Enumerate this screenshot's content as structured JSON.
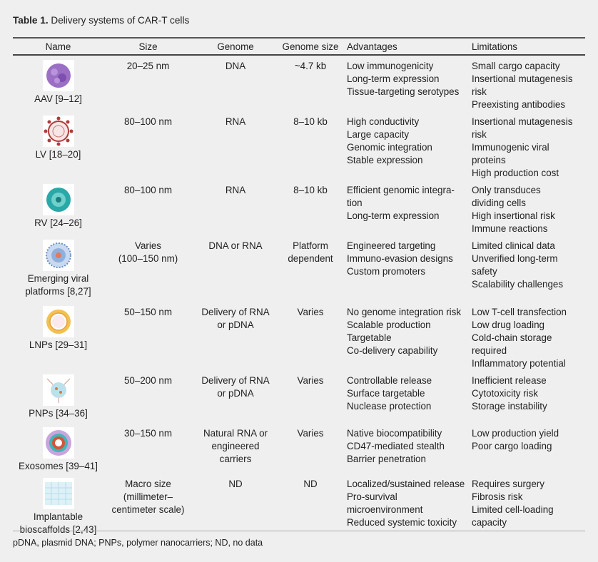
{
  "title": {
    "label": "Table 1.",
    "text": " Delivery systems of CAR-T cells"
  },
  "headers": [
    "Name",
    "Size",
    "Genome",
    "Genome size",
    "Advantages",
    "Limitations"
  ],
  "rows": [
    {
      "icon": "aav-icon",
      "name": [
        "AAV [9–12]"
      ],
      "size": [
        "20–25 nm"
      ],
      "genome": [
        "DNA"
      ],
      "genome_size": [
        "~4.7 kb"
      ],
      "advantages": [
        "Low immunogenicity",
        "Long-term expression",
        "Tissue-targeting serotypes"
      ],
      "limitations": [
        "Small cargo capacity",
        "Insertional mutagenesis",
        "risk",
        "Preexisting antibodies"
      ]
    },
    {
      "icon": "lentivirus-icon",
      "name": [
        "LV [18–20]"
      ],
      "size": [
        "80–100 nm"
      ],
      "genome": [
        "RNA"
      ],
      "genome_size": [
        "8–10 kb"
      ],
      "advantages": [
        "High conductivity",
        "Large capacity",
        "Genomic integration",
        "Stable expression"
      ],
      "limitations": [
        "Insertional mutagenesis",
        "risk",
        "Immunogenic viral",
        "proteins",
        "High production cost"
      ]
    },
    {
      "icon": "retrovirus-icon",
      "name": [
        "RV [24–26]"
      ],
      "size": [
        "80–100 nm"
      ],
      "genome": [
        "RNA"
      ],
      "genome_size": [
        "8–10 kb"
      ],
      "advantages": [
        "Efficient genomic integra-",
        "tion",
        "Long-term expression"
      ],
      "limitations": [
        "Only transduces",
        "dividing cells",
        "High insertional risk",
        "Immune reactions"
      ]
    },
    {
      "icon": "emerging-viral-icon",
      "name": [
        "Emerging viral",
        "platforms [8,27]"
      ],
      "size": [
        "Varies",
        "(100–150 nm)"
      ],
      "genome": [
        "DNA or RNA"
      ],
      "genome_size": [
        "Platform",
        "dependent"
      ],
      "advantages": [
        "Engineered targeting",
        "Immuno-evasion designs",
        "Custom promoters"
      ],
      "limitations": [
        "Limited clinical data",
        "Unverified long-term",
        "safety",
        "Scalability challenges"
      ]
    },
    {
      "icon": "lnp-icon",
      "name": [
        "LNPs [29–31]"
      ],
      "size": [
        "50–150 nm"
      ],
      "genome": [
        "Delivery of RNA",
        "or pDNA"
      ],
      "genome_size": [
        "Varies"
      ],
      "advantages": [
        "No genome integration risk",
        "Scalable production",
        "Targetable",
        "Co-delivery capability"
      ],
      "limitations": [
        "Low T-cell transfection",
        "Low drug loading",
        "Cold-chain storage",
        "required",
        "Inflammatory potential"
      ]
    },
    {
      "icon": "pnp-icon",
      "name": [
        "PNPs [34–36]"
      ],
      "size": [
        "50–200 nm"
      ],
      "genome": [
        "Delivery of RNA",
        "or pDNA"
      ],
      "genome_size": [
        "Varies"
      ],
      "advantages": [
        "Controllable release",
        "Surface targetable",
        "Nuclease protection"
      ],
      "limitations": [
        "Inefficient release",
        "Cytotoxicity risk",
        "Storage instability"
      ]
    },
    {
      "icon": "exosome-icon",
      "name": [
        "Exosomes [39–41]"
      ],
      "size": [
        "30–150 nm"
      ],
      "genome": [
        "Natural RNA or",
        "engineered",
        "carriers"
      ],
      "genome_size": [
        "Varies"
      ],
      "advantages": [
        "Native biocompatibility",
        "CD47-mediated stealth",
        "Barrier penetration"
      ],
      "limitations": [
        "Low production yield",
        "Poor cargo loading"
      ]
    },
    {
      "icon": "bioscaffold-icon",
      "name": [
        "Implantable",
        "bioscaffolds [2,43]"
      ],
      "size": [
        "Macro size",
        "(millimeter–",
        "centimeter scale)"
      ],
      "genome": [
        "ND"
      ],
      "genome_size": [
        "ND"
      ],
      "advantages": [
        "Localized/sustained release",
        "Pro-survival",
        "microenvironment",
        "Reduced systemic toxicity"
      ],
      "limitations": [
        "Requires surgery",
        "Fibrosis risk",
        "Limited cell-loading",
        "capacity"
      ]
    }
  ],
  "footnote": "pDNA, plasmid DNA; PNPs, polymer nanocarriers; ND, no data"
}
